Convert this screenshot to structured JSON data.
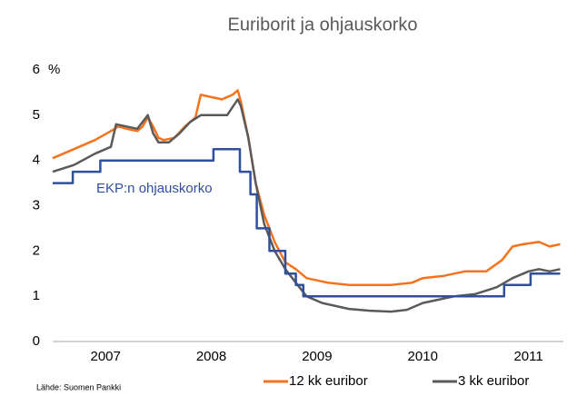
{
  "chart_data": {
    "type": "line",
    "title": "Euriborit ja ohjauskorko",
    "y_unit": "%",
    "source": "Lähde: Suomen Pankki",
    "xlim": [
      2007,
      2011.83
    ],
    "xticks": [
      {
        "value": 2007.5,
        "label": "2007"
      },
      {
        "value": 2008.5,
        "label": "2008"
      },
      {
        "value": 2009.5,
        "label": "2009"
      },
      {
        "value": 2010.5,
        "label": "2010"
      },
      {
        "value": 2011.5,
        "label": "2011"
      }
    ],
    "ylim": [
      0,
      6
    ],
    "yticks": [
      0,
      1,
      2,
      3,
      4,
      5,
      6
    ],
    "legend": "bottom",
    "series": [
      {
        "name": "12 kk euribor",
        "color": "#f5731e",
        "name_position": "legend",
        "x": [
          2007.0,
          2007.2,
          2007.4,
          2007.55,
          2007.62,
          2007.7,
          2007.8,
          2007.85,
          2007.9,
          2007.95,
          2008.0,
          2008.05,
          2008.15,
          2008.25,
          2008.35,
          2008.4,
          2008.5,
          2008.6,
          2008.7,
          2008.75,
          2008.78,
          2008.85,
          2008.92,
          2009.0,
          2009.1,
          2009.2,
          2009.3,
          2009.4,
          2009.6,
          2009.8,
          2010.0,
          2010.2,
          2010.4,
          2010.5,
          2010.7,
          2010.9,
          2011.1,
          2011.25,
          2011.35,
          2011.45,
          2011.6,
          2011.7,
          2011.8
        ],
        "values": [
          4.05,
          4.25,
          4.45,
          4.65,
          4.75,
          4.7,
          4.65,
          4.75,
          4.95,
          4.75,
          4.5,
          4.45,
          4.5,
          4.75,
          4.95,
          5.45,
          5.4,
          5.35,
          5.45,
          5.55,
          5.3,
          4.5,
          3.5,
          2.8,
          2.2,
          1.75,
          1.6,
          1.4,
          1.3,
          1.25,
          1.25,
          1.25,
          1.3,
          1.4,
          1.45,
          1.55,
          1.55,
          1.8,
          2.1,
          2.15,
          2.2,
          2.1,
          2.15
        ]
      },
      {
        "name": "3 kk euribor",
        "color": "#5a5a5a",
        "name_position": "legend",
        "x": [
          2007.0,
          2007.2,
          2007.4,
          2007.55,
          2007.6,
          2007.7,
          2007.8,
          2007.9,
          2007.95,
          2008.0,
          2008.1,
          2008.2,
          2008.3,
          2008.4,
          2008.5,
          2008.65,
          2008.75,
          2008.78,
          2008.85,
          2008.92,
          2009.0,
          2009.1,
          2009.2,
          2009.3,
          2009.4,
          2009.55,
          2009.8,
          2010.0,
          2010.2,
          2010.35,
          2010.5,
          2010.6,
          2010.8,
          2011.0,
          2011.2,
          2011.35,
          2011.5,
          2011.6,
          2011.7,
          2011.8
        ],
        "values": [
          3.75,
          3.9,
          4.15,
          4.3,
          4.8,
          4.75,
          4.7,
          5.0,
          4.6,
          4.4,
          4.4,
          4.6,
          4.85,
          5.0,
          5.0,
          5.0,
          5.35,
          5.2,
          4.5,
          3.5,
          2.6,
          2.0,
          1.6,
          1.3,
          1.0,
          0.85,
          0.72,
          0.68,
          0.66,
          0.7,
          0.85,
          0.9,
          1.0,
          1.05,
          1.2,
          1.4,
          1.55,
          1.6,
          1.55,
          1.6
        ]
      },
      {
        "name": "EKP:n ohjauskorko",
        "color": "#2f4f9f",
        "name_position": "inline",
        "x": [
          2007.0,
          2007.19,
          2007.19,
          2007.45,
          2007.45,
          2008.52,
          2008.52,
          2008.77,
          2008.77,
          2008.87,
          2008.87,
          2008.93,
          2008.93,
          2009.05,
          2009.05,
          2009.2,
          2009.2,
          2009.3,
          2009.3,
          2009.37,
          2009.37,
          2011.27,
          2011.27,
          2011.52,
          2011.52,
          2011.8
        ],
        "values": [
          3.5,
          3.5,
          3.75,
          3.75,
          4.0,
          4.0,
          4.25,
          4.25,
          3.75,
          3.75,
          3.25,
          3.25,
          2.5,
          2.5,
          2.0,
          2.0,
          1.5,
          1.5,
          1.25,
          1.25,
          1.0,
          1.0,
          1.25,
          1.25,
          1.5,
          1.5
        ]
      }
    ]
  }
}
